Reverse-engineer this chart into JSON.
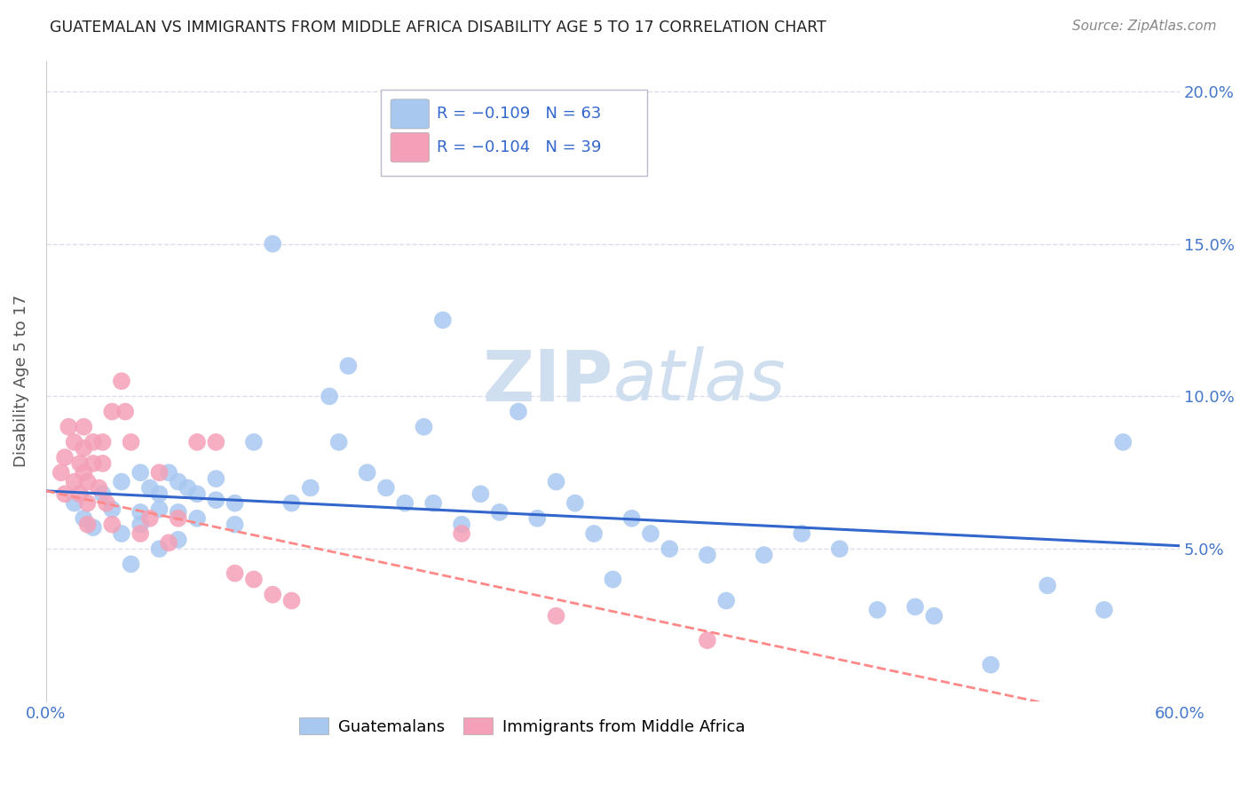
{
  "title": "GUATEMALAN VS IMMIGRANTS FROM MIDDLE AFRICA DISABILITY AGE 5 TO 17 CORRELATION CHART",
  "source": "Source: ZipAtlas.com",
  "ylabel": "Disability Age 5 to 17",
  "xlim": [
    0.0,
    0.6
  ],
  "ylim": [
    0.0,
    0.21
  ],
  "xticks": [
    0.0,
    0.15,
    0.3,
    0.45,
    0.6
  ],
  "xticklabels": [
    "0.0%",
    "",
    "",
    "",
    "60.0%"
  ],
  "yticks": [
    0.0,
    0.05,
    0.1,
    0.15,
    0.2
  ],
  "right_yticklabels": [
    "",
    "5.0%",
    "10.0%",
    "15.0%",
    "20.0%"
  ],
  "blue_color": "#A8C8F0",
  "pink_color": "#F4A0B8",
  "blue_line_color": "#3366CC",
  "pink_line_color": "#FF8888",
  "axis_color": "#4477CC",
  "grid_color": "#DDDDEE",
  "watermark_color": "#D0DFF0",
  "background_color": "#FFFFFF",
  "legend_R1": "R = −0.109",
  "legend_N1": "N = 63",
  "legend_R2": "R = −0.104",
  "legend_N2": "N = 39",
  "blue_scatter_x": [
    0.015,
    0.02,
    0.025,
    0.03,
    0.035,
    0.04,
    0.04,
    0.045,
    0.05,
    0.05,
    0.05,
    0.055,
    0.06,
    0.06,
    0.06,
    0.065,
    0.07,
    0.07,
    0.07,
    0.075,
    0.08,
    0.08,
    0.09,
    0.09,
    0.1,
    0.1,
    0.11,
    0.12,
    0.13,
    0.14,
    0.15,
    0.155,
    0.16,
    0.17,
    0.18,
    0.19,
    0.2,
    0.205,
    0.21,
    0.22,
    0.23,
    0.24,
    0.25,
    0.26,
    0.27,
    0.28,
    0.29,
    0.3,
    0.31,
    0.32,
    0.33,
    0.35,
    0.36,
    0.38,
    0.4,
    0.42,
    0.44,
    0.46,
    0.5,
    0.53,
    0.56,
    0.57,
    0.47
  ],
  "blue_scatter_y": [
    0.065,
    0.06,
    0.057,
    0.068,
    0.063,
    0.055,
    0.072,
    0.045,
    0.075,
    0.062,
    0.058,
    0.07,
    0.068,
    0.063,
    0.05,
    0.075,
    0.072,
    0.062,
    0.053,
    0.07,
    0.068,
    0.06,
    0.073,
    0.066,
    0.065,
    0.058,
    0.085,
    0.15,
    0.065,
    0.07,
    0.1,
    0.085,
    0.11,
    0.075,
    0.07,
    0.065,
    0.09,
    0.065,
    0.125,
    0.058,
    0.068,
    0.062,
    0.095,
    0.06,
    0.072,
    0.065,
    0.055,
    0.04,
    0.06,
    0.055,
    0.05,
    0.048,
    0.033,
    0.048,
    0.055,
    0.05,
    0.03,
    0.031,
    0.012,
    0.038,
    0.03,
    0.085,
    0.028
  ],
  "pink_scatter_x": [
    0.008,
    0.01,
    0.01,
    0.012,
    0.015,
    0.015,
    0.018,
    0.018,
    0.02,
    0.02,
    0.02,
    0.022,
    0.022,
    0.022,
    0.025,
    0.025,
    0.028,
    0.03,
    0.03,
    0.032,
    0.035,
    0.035,
    0.04,
    0.042,
    0.045,
    0.05,
    0.055,
    0.06,
    0.065,
    0.07,
    0.08,
    0.09,
    0.1,
    0.11,
    0.12,
    0.13,
    0.22,
    0.27,
    0.35
  ],
  "pink_scatter_y": [
    0.075,
    0.08,
    0.068,
    0.09,
    0.085,
    0.072,
    0.078,
    0.068,
    0.09,
    0.083,
    0.075,
    0.072,
    0.065,
    0.058,
    0.085,
    0.078,
    0.07,
    0.085,
    0.078,
    0.065,
    0.095,
    0.058,
    0.105,
    0.095,
    0.085,
    0.055,
    0.06,
    0.075,
    0.052,
    0.06,
    0.085,
    0.085,
    0.042,
    0.04,
    0.035,
    0.033,
    0.055,
    0.028,
    0.02
  ],
  "blue_trend_y_start": 0.069,
  "blue_trend_y_end": 0.051,
  "pink_trend_y_start": 0.069,
  "pink_trend_y_end": -0.01
}
